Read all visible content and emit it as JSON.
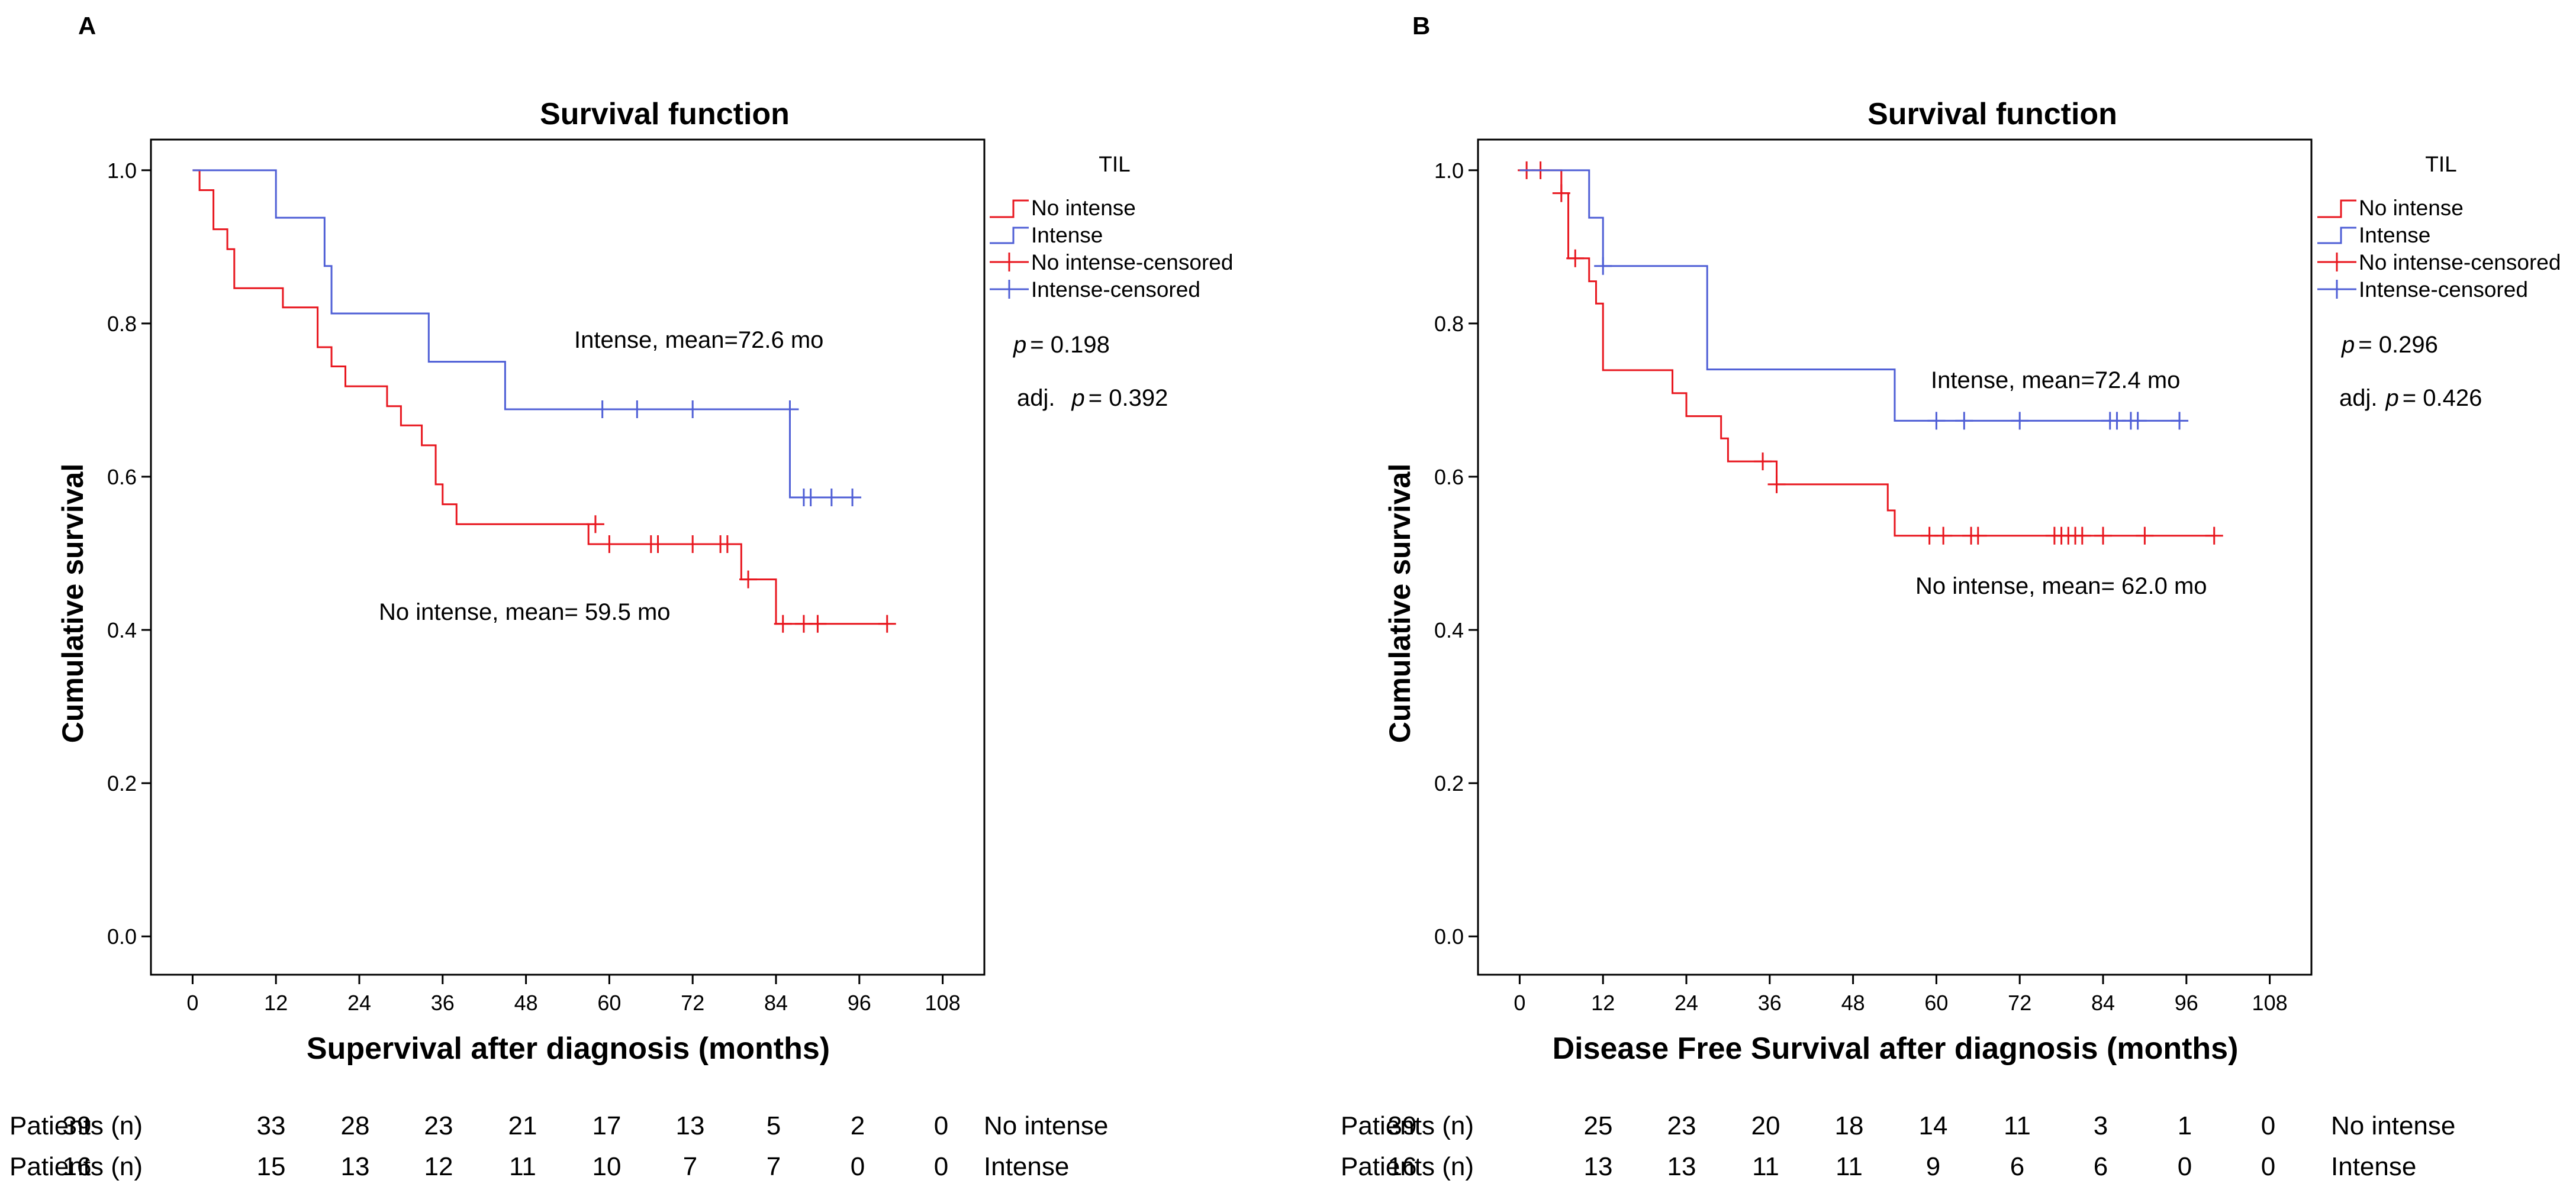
{
  "chart_data": [
    {
      "type": "line",
      "step": true,
      "panel_label": "A",
      "title": "Survival function",
      "xlabel": "Supervival after diagnosis (months)",
      "ylabel": "Cumulative survival",
      "xlim": [
        -6,
        114
      ],
      "ylim": [
        -0.05,
        1.04
      ],
      "xticks": [
        "0",
        "12",
        "24",
        "36",
        "48",
        "60",
        "72",
        "84",
        "96",
        "108"
      ],
      "yticks": [
        "0.0",
        "0.2",
        "0.4",
        "0.6",
        "0.8",
        "1.0"
      ],
      "grid": false,
      "legend": {
        "title": "TIL",
        "position": "right",
        "entries": [
          "No intense",
          "Intense",
          "No intense-censored",
          "Intense-censored"
        ]
      },
      "stats": {
        "p_label": "p",
        "p_prefix": "",
        "p_value": "= 0.198",
        "adj_prefix": "adj.",
        "adj_label": "p",
        "adj_value": "= 0.392"
      },
      "series": [
        {
          "name": "No intense",
          "color": "#e8171f",
          "x": [
            0,
            1,
            3,
            5,
            6,
            7,
            13,
            18,
            20,
            21,
            22,
            28,
            30,
            33,
            35,
            36,
            37,
            38,
            57,
            79,
            84,
            100
          ],
          "y": [
            1.0,
            0.974,
            0.923,
            0.897,
            0.846,
            0.846,
            0.821,
            0.769,
            0.744,
            0.744,
            0.718,
            0.692,
            0.667,
            0.641,
            0.59,
            0.564,
            0.564,
            0.538,
            0.512,
            0.466,
            0.408,
            0.408
          ],
          "censored_x": [
            58,
            60,
            66,
            67,
            72,
            76,
            77,
            80,
            85,
            88,
            90,
            100
          ],
          "censored_y": [
            0.538,
            0.512,
            0.512,
            0.512,
            0.512,
            0.512,
            0.512,
            0.466,
            0.408,
            0.408,
            0.408,
            0.408
          ],
          "annotation": "No intense, mean= 59.5 mo"
        },
        {
          "name": "Intense",
          "color": "#4f5fd6",
          "x": [
            0,
            12,
            19,
            20,
            34,
            45,
            86,
            95
          ],
          "y": [
            1.0,
            0.938,
            0.875,
            0.813,
            0.75,
            0.688,
            0.573,
            0.573
          ],
          "censored_x": [
            59,
            64,
            72,
            86,
            88,
            89,
            92,
            95
          ],
          "censored_y": [
            0.688,
            0.688,
            0.688,
            0.688,
            0.573,
            0.573,
            0.573,
            0.573
          ],
          "annotation": "Intense, mean=72.6 mo"
        }
      ],
      "risk_table": {
        "row_label": "Patients (n)",
        "rows": [
          {
            "group": "No intense",
            "values": [
              "39",
              "33",
              "28",
              "23",
              "21",
              "17",
              "13",
              "5",
              "2",
              "0"
            ]
          },
          {
            "group": "Intense",
            "values": [
              "16",
              "15",
              "13",
              "12",
              "11",
              "10",
              "7",
              "7",
              "0",
              "0"
            ]
          }
        ]
      }
    },
    {
      "type": "line",
      "step": true,
      "panel_label": "B",
      "title": "Survival function",
      "xlabel": "Disease Free Survival after diagnosis (months)",
      "ylabel": "Cumulative survival",
      "xlim": [
        -6,
        114
      ],
      "ylim": [
        -0.05,
        1.04
      ],
      "xticks": [
        "0",
        "12",
        "24",
        "36",
        "48",
        "60",
        "72",
        "84",
        "96",
        "108"
      ],
      "yticks": [
        "0.0",
        "0.2",
        "0.4",
        "0.6",
        "0.8",
        "1.0"
      ],
      "grid": false,
      "legend": {
        "title": "TIL",
        "position": "right",
        "entries": [
          "No intense",
          "Intense",
          "No intense-censored",
          "Intense-censored"
        ]
      },
      "stats": {
        "p_label": "p",
        "p_prefix": "",
        "p_value": "= 0.296",
        "adj_prefix": "adj.",
        "adj_label": "p",
        "adj_value": "= 0.426"
      },
      "series": [
        {
          "name": "No intense",
          "color": "#e8171f",
          "x": [
            0,
            6,
            7,
            9,
            10,
            11,
            12,
            22,
            24,
            29,
            30,
            31,
            37,
            53,
            54,
            55,
            100
          ],
          "y": [
            1.0,
            0.97,
            0.885,
            0.885,
            0.855,
            0.826,
            0.739,
            0.709,
            0.679,
            0.65,
            0.62,
            0.62,
            0.59,
            0.556,
            0.523,
            0.523,
            0.523
          ],
          "censored_x": [
            1,
            3,
            6,
            8,
            35,
            37,
            59,
            61,
            65,
            66,
            77,
            78,
            79,
            80,
            81,
            84,
            90,
            100
          ],
          "censored_y": [
            1.0,
            1.0,
            0.97,
            0.885,
            0.62,
            0.59,
            0.523,
            0.523,
            0.523,
            0.523,
            0.523,
            0.523,
            0.523,
            0.523,
            0.523,
            0.523,
            0.523,
            0.523
          ],
          "annotation": "No intense, mean= 62.0 mo"
        },
        {
          "name": "Intense",
          "color": "#4f5fd6",
          "x": [
            0,
            5,
            6,
            10,
            12,
            26,
            27,
            54,
            95
          ],
          "y": [
            1.0,
            1.0,
            1.0,
            0.938,
            0.875,
            0.875,
            0.74,
            0.673,
            0.673
          ],
          "censored_x": [
            12,
            60,
            64,
            72,
            85,
            86,
            88,
            89,
            95
          ],
          "censored_y": [
            0.875,
            0.673,
            0.673,
            0.673,
            0.673,
            0.673,
            0.673,
            0.673,
            0.673
          ],
          "annotation": "Intense, mean=72.4 mo"
        }
      ],
      "risk_table": {
        "row_label": "Patients (n)",
        "rows": [
          {
            "group": "No intense",
            "values": [
              "39",
              "25",
              "23",
              "20",
              "18",
              "14",
              "11",
              "3",
              "1",
              "0"
            ]
          },
          {
            "group": "Intense",
            "values": [
              "16",
              "13",
              "13",
              "11",
              "11",
              "9",
              "6",
              "6",
              "0",
              "0"
            ]
          }
        ]
      }
    }
  ]
}
